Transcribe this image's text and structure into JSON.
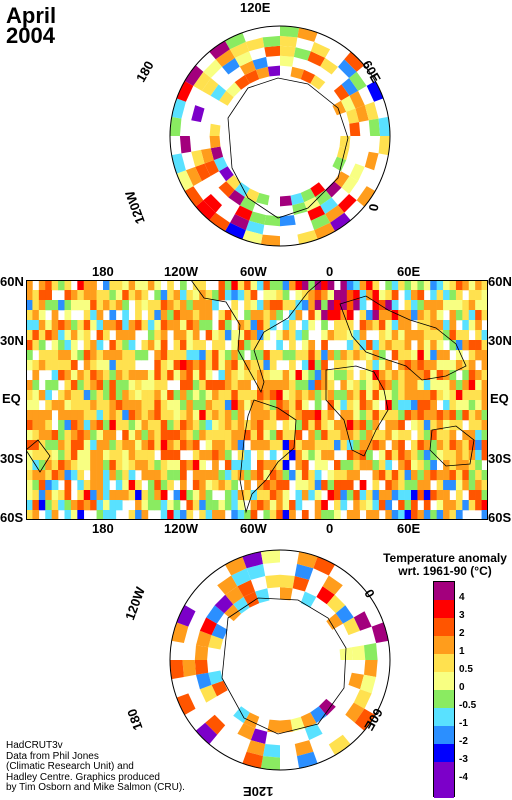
{
  "title": {
    "month": "April",
    "year": "2004"
  },
  "north_polar": {
    "labels": {
      "top": "120E",
      "right": "60E",
      "lower_right": "0",
      "left": "180",
      "lower_left": "120W"
    }
  },
  "lat_lon_map": {
    "top_lon_labels": [
      "180",
      "120W",
      "60W",
      "0",
      "60E"
    ],
    "bottom_lon_labels": [
      "180",
      "120W",
      "60W",
      "0",
      "60E"
    ],
    "left_lat_labels": [
      "60N",
      "30N",
      "EQ",
      "30S",
      "60S"
    ],
    "right_lat_labels": [
      "60N",
      "30N",
      "EQ",
      "30S",
      "60S"
    ]
  },
  "south_polar": {
    "labels": {
      "upper_left": "120W",
      "upper_right": "0",
      "lower_left": "180",
      "lower_right": "60E",
      "bottom": "120E"
    }
  },
  "legend": {
    "title_line1": "Temperature anomaly",
    "title_line2": "wrt. 1961-90  (°C)",
    "ticks": [
      "4",
      "3",
      "2",
      "1",
      "0.5",
      "0",
      "-0.5",
      "-1",
      "-2",
      "-3",
      "-4"
    ],
    "colors": [
      "#a3007d",
      "#ff0000",
      "#ff5500",
      "#ff9d1c",
      "#ffe14f",
      "#f8ff82",
      "#8aeb61",
      "#59e1ff",
      "#2b8fff",
      "#0000ff",
      "#7c00c9",
      "#ffffff"
    ]
  },
  "credit": {
    "line1": "HadCRUT3v",
    "line2": "Data from Phil Jones",
    "line3": "(Climatic Research Unit) and",
    "line4": "Hadley Centre.  Graphics produced",
    "line5": "by Tim Osborn and Mike Salmon (CRU)."
  }
}
